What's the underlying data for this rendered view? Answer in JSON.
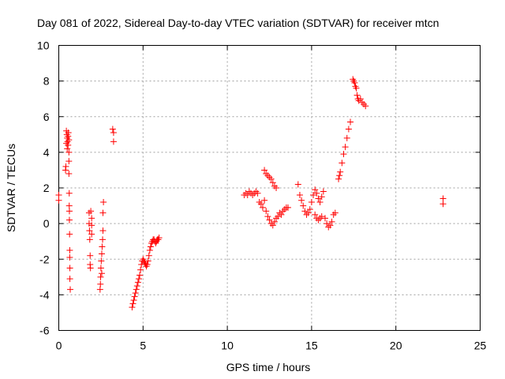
{
  "chart_data": {
    "type": "scatter",
    "title": "Day 081 of 2022, Sidereal Day-to-day VTEC variation (SDTVAR) for receiver mtcn",
    "xlabel": "GPS time / hours",
    "ylabel": "SDTVAR / TECUs",
    "xlim": [
      0,
      25
    ],
    "ylim": [
      -6,
      10
    ],
    "xticks": [
      0,
      5,
      10,
      15,
      20,
      25
    ],
    "yticks": [
      -6,
      -4,
      -2,
      0,
      2,
      4,
      6,
      8,
      10
    ],
    "xtick_labels": [
      "0",
      "5",
      "10",
      "15",
      "20",
      "25"
    ],
    "ytick_labels": [
      "-6",
      "-4",
      "-2",
      "0",
      "2",
      "4",
      "6",
      "8",
      "10"
    ],
    "grid": true,
    "marker": "+",
    "color": "#ff0000",
    "series": [
      {
        "name": "SDTVAR",
        "points": [
          [
            0.0,
            1.6
          ],
          [
            0.0,
            1.3
          ],
          [
            0.4,
            3.0
          ],
          [
            0.42,
            3.2
          ],
          [
            0.45,
            4.5
          ],
          [
            0.45,
            5.2
          ],
          [
            0.48,
            5.0
          ],
          [
            0.5,
            4.8
          ],
          [
            0.5,
            4.2
          ],
          [
            0.52,
            4.6
          ],
          [
            0.55,
            4.9
          ],
          [
            0.55,
            4.4
          ],
          [
            0.57,
            5.1
          ],
          [
            0.6,
            4.7
          ],
          [
            0.6,
            4.0
          ],
          [
            0.6,
            3.5
          ],
          [
            0.6,
            2.8
          ],
          [
            0.62,
            1.7
          ],
          [
            0.62,
            1.0
          ],
          [
            0.63,
            0.7
          ],
          [
            0.63,
            0.2
          ],
          [
            0.64,
            -0.6
          ],
          [
            0.65,
            -1.5
          ],
          [
            0.65,
            -1.9
          ],
          [
            0.66,
            -2.5
          ],
          [
            0.66,
            -3.1
          ],
          [
            0.68,
            -3.7
          ],
          [
            1.8,
            0.6
          ],
          [
            1.8,
            0.0
          ],
          [
            1.82,
            -0.4
          ],
          [
            1.84,
            -0.9
          ],
          [
            1.86,
            -1.8
          ],
          [
            1.86,
            -2.3
          ],
          [
            1.88,
            -2.5
          ],
          [
            1.9,
            0.7
          ],
          [
            1.95,
            0.3
          ],
          [
            1.95,
            -0.1
          ],
          [
            1.95,
            -0.6
          ],
          [
            2.45,
            -3.7
          ],
          [
            2.47,
            -3.4
          ],
          [
            2.48,
            -3.0
          ],
          [
            2.5,
            -2.5
          ],
          [
            2.52,
            -2.1
          ],
          [
            2.55,
            -1.7
          ],
          [
            2.57,
            -1.3
          ],
          [
            2.6,
            -0.9
          ],
          [
            2.62,
            -0.4
          ],
          [
            2.62,
            0.6
          ],
          [
            2.65,
            1.2
          ],
          [
            2.55,
            -2.8
          ],
          [
            3.2,
            5.3
          ],
          [
            3.25,
            5.1
          ],
          [
            3.25,
            4.6
          ],
          [
            4.35,
            -4.7
          ],
          [
            4.4,
            -4.5
          ],
          [
            4.45,
            -4.3
          ],
          [
            4.5,
            -4.1
          ],
          [
            4.55,
            -3.9
          ],
          [
            4.6,
            -3.7
          ],
          [
            4.65,
            -3.5
          ],
          [
            4.7,
            -3.3
          ],
          [
            4.75,
            -3.1
          ],
          [
            4.8,
            -2.9
          ],
          [
            4.85,
            -2.6
          ],
          [
            4.9,
            -2.3
          ],
          [
            4.95,
            -2.1
          ],
          [
            5.0,
            -2.0
          ],
          [
            5.05,
            -2.1
          ],
          [
            5.1,
            -2.2
          ],
          [
            5.15,
            -2.3
          ],
          [
            5.2,
            -2.4
          ],
          [
            5.25,
            -2.3
          ],
          [
            5.3,
            -2.1
          ],
          [
            5.35,
            -1.8
          ],
          [
            5.4,
            -1.5
          ],
          [
            5.45,
            -1.3
          ],
          [
            5.5,
            -1.1
          ],
          [
            5.55,
            -1.0
          ],
          [
            5.6,
            -0.9
          ],
          [
            5.65,
            -0.9
          ],
          [
            5.7,
            -1.0
          ],
          [
            5.75,
            -1.1
          ],
          [
            5.8,
            -1.0
          ],
          [
            5.85,
            -0.9
          ],
          [
            5.9,
            -0.9
          ],
          [
            5.95,
            -0.8
          ],
          [
            11.0,
            1.6
          ],
          [
            11.1,
            1.7
          ],
          [
            11.2,
            1.6
          ],
          [
            11.3,
            1.8
          ],
          [
            11.4,
            1.7
          ],
          [
            11.5,
            1.6
          ],
          [
            11.6,
            1.7
          ],
          [
            11.7,
            1.8
          ],
          [
            11.8,
            1.7
          ],
          [
            11.9,
            1.2
          ],
          [
            12.0,
            1.1
          ],
          [
            12.1,
            0.9
          ],
          [
            12.2,
            1.3
          ],
          [
            12.3,
            0.7
          ],
          [
            12.4,
            0.4
          ],
          [
            12.5,
            0.2
          ],
          [
            12.6,
            0.0
          ],
          [
            12.7,
            -0.1
          ],
          [
            12.8,
            0.1
          ],
          [
            12.9,
            0.3
          ],
          [
            13.0,
            0.4
          ],
          [
            13.1,
            0.6
          ],
          [
            13.2,
            0.5
          ],
          [
            13.3,
            0.7
          ],
          [
            13.4,
            0.8
          ],
          [
            13.5,
            0.9
          ],
          [
            13.6,
            0.9
          ],
          [
            12.2,
            3.0
          ],
          [
            12.3,
            2.8
          ],
          [
            12.4,
            2.7
          ],
          [
            12.5,
            2.6
          ],
          [
            12.6,
            2.5
          ],
          [
            12.7,
            2.3
          ],
          [
            12.8,
            2.1
          ],
          [
            12.9,
            2.0
          ],
          [
            14.2,
            2.2
          ],
          [
            14.3,
            1.6
          ],
          [
            14.4,
            1.3
          ],
          [
            14.5,
            1.0
          ],
          [
            14.6,
            0.7
          ],
          [
            14.7,
            0.5
          ],
          [
            14.8,
            0.6
          ],
          [
            14.9,
            0.8
          ],
          [
            15.0,
            1.2
          ],
          [
            15.1,
            1.6
          ],
          [
            15.2,
            1.9
          ],
          [
            15.3,
            1.7
          ],
          [
            15.4,
            1.4
          ],
          [
            15.5,
            1.2
          ],
          [
            15.6,
            1.5
          ],
          [
            15.7,
            1.8
          ],
          [
            15.2,
            0.5
          ],
          [
            15.3,
            0.3
          ],
          [
            15.4,
            0.2
          ],
          [
            15.5,
            0.3
          ],
          [
            15.6,
            0.4
          ],
          [
            15.8,
            0.3
          ],
          [
            15.9,
            0.0
          ],
          [
            16.0,
            -0.2
          ],
          [
            16.1,
            -0.1
          ],
          [
            16.2,
            0.1
          ],
          [
            16.3,
            0.5
          ],
          [
            16.4,
            0.6
          ],
          [
            16.6,
            2.5
          ],
          [
            16.65,
            2.7
          ],
          [
            16.7,
            2.9
          ],
          [
            16.8,
            3.4
          ],
          [
            16.9,
            3.9
          ],
          [
            17.0,
            4.3
          ],
          [
            17.1,
            4.8
          ],
          [
            17.2,
            5.3
          ],
          [
            17.3,
            5.7
          ],
          [
            17.45,
            8.1
          ],
          [
            17.5,
            8.0
          ],
          [
            17.55,
            7.9
          ],
          [
            17.6,
            7.7
          ],
          [
            17.65,
            7.6
          ],
          [
            17.7,
            7.2
          ],
          [
            17.75,
            7.0
          ],
          [
            17.8,
            6.9
          ],
          [
            17.9,
            7.0
          ],
          [
            18.0,
            6.8
          ],
          [
            18.1,
            6.7
          ],
          [
            18.2,
            6.6
          ],
          [
            22.8,
            1.4
          ],
          [
            22.8,
            1.1
          ]
        ]
      }
    ]
  }
}
